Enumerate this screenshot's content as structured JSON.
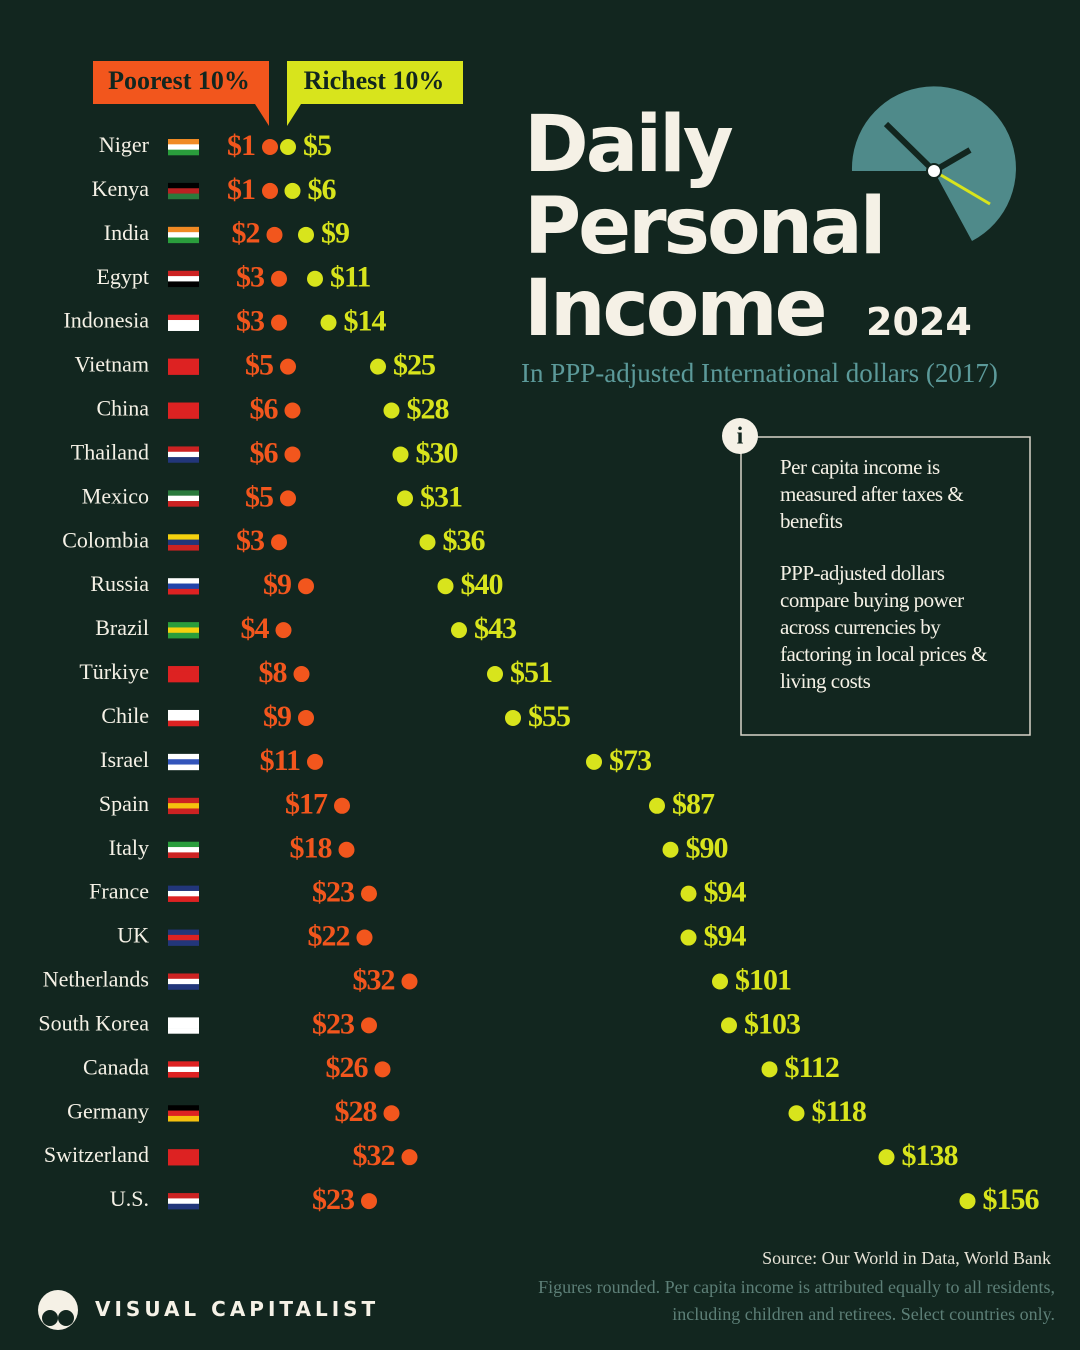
{
  "chart_data": {
    "type": "dumbbell",
    "title": "Daily Personal Income",
    "title_year": "2024",
    "subtitle": "In PPP-adjusted International dollars (2017)",
    "categories": [
      "Niger",
      "Kenya",
      "India",
      "Egypt",
      "Indonesia",
      "Vietnam",
      "China",
      "Thailand",
      "Mexico",
      "Colombia",
      "Russia",
      "Brazil",
      "Türkiye",
      "Chile",
      "Israel",
      "Spain",
      "Italy",
      "France",
      "UK",
      "Netherlands",
      "South Korea",
      "Canada",
      "Germany",
      "Switzerland",
      "U.S."
    ],
    "series": [
      {
        "name": "Poorest 10%",
        "color": "#f2561d",
        "values": [
          1,
          1,
          2,
          3,
          3,
          5,
          6,
          6,
          5,
          3,
          9,
          4,
          8,
          9,
          11,
          17,
          18,
          23,
          22,
          32,
          23,
          26,
          28,
          32,
          23
        ],
        "value_labels": [
          "$1",
          "$1",
          "$2",
          "$3",
          "$3",
          "$5",
          "$6",
          "$6",
          "$5",
          "$3",
          "$9",
          "$4",
          "$8",
          "$9",
          "$11",
          "$17",
          "$18",
          "$23",
          "$22",
          "$32",
          "$23",
          "$26",
          "$28",
          "$32",
          "$23"
        ]
      },
      {
        "name": "Richest 10%",
        "color": "#d8e41c",
        "values": [
          5,
          6,
          9,
          11,
          14,
          25,
          28,
          30,
          31,
          36,
          40,
          43,
          51,
          55,
          73,
          87,
          90,
          94,
          94,
          101,
          103,
          112,
          118,
          138,
          156
        ],
        "value_labels": [
          "$5",
          "$6",
          "$9",
          "$11",
          "$14",
          "$25",
          "$28",
          "$30",
          "$31",
          "$36",
          "$40",
          "$43",
          "$51",
          "$55",
          "$73",
          "$87",
          "$90",
          "$94",
          "$94",
          "$101",
          "$103",
          "$112",
          "$118",
          "$138",
          "$156"
        ]
      }
    ],
    "xlim": [
      0,
      180
    ],
    "notes": [
      "Per capita income is measured after taxes & benefits",
      "PPP-adjusted dollars compare buying power across currencies by factoring in local prices & living costs"
    ],
    "source": "Source: Our World in Data, World Bank",
    "footnote": "Figures rounded. Per capita income is attributed equally to all residents, including children and retirees. Select countries only.",
    "brand": "VISUAL CAPITALIST"
  }
}
